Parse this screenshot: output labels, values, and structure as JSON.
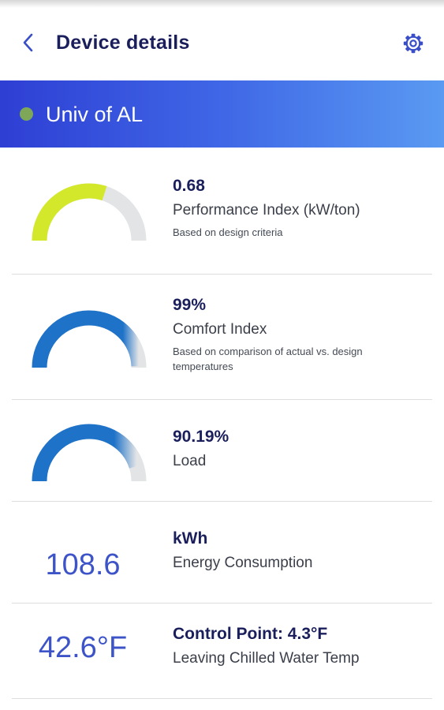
{
  "header": {
    "title": "Device details",
    "back_icon": "chevron-left-icon",
    "settings_icon": "gear-icon"
  },
  "device": {
    "name": "Univ of AL",
    "status_color": "#7ea858"
  },
  "metrics": [
    {
      "value": "0.68",
      "label": "Performance Index (kW/ton)",
      "description": "Based on design criteria",
      "gauge_fraction": 0.6,
      "gauge_color": "#d3e82b",
      "track_color": "#e2e4e6"
    },
    {
      "value": "99%",
      "label": "Comfort Index",
      "description": "Based on comparison of actual vs. design temperatures",
      "gauge_fraction": 0.99,
      "gauge_color": "#1e72c8",
      "track_color": "#e2e4e6"
    },
    {
      "value": "90.19%",
      "label": "Load",
      "gauge_fraction": 0.9019,
      "gauge_color": "#1e72c8",
      "track_color": "#e2e4e6"
    },
    {
      "big_value": "108.6",
      "value": "kWh",
      "label": "Energy Consumption"
    },
    {
      "big_value": "42.6°F",
      "value": "Control Point: 4.3°F",
      "label": "Leaving Chilled Water Temp"
    }
  ],
  "colors": {
    "title": "#1a1f5c",
    "accent_value": "#3d54c8",
    "icon": "#3a4ec7",
    "banner_start": "#2e3fd4",
    "banner_end": "#5a9af2"
  }
}
